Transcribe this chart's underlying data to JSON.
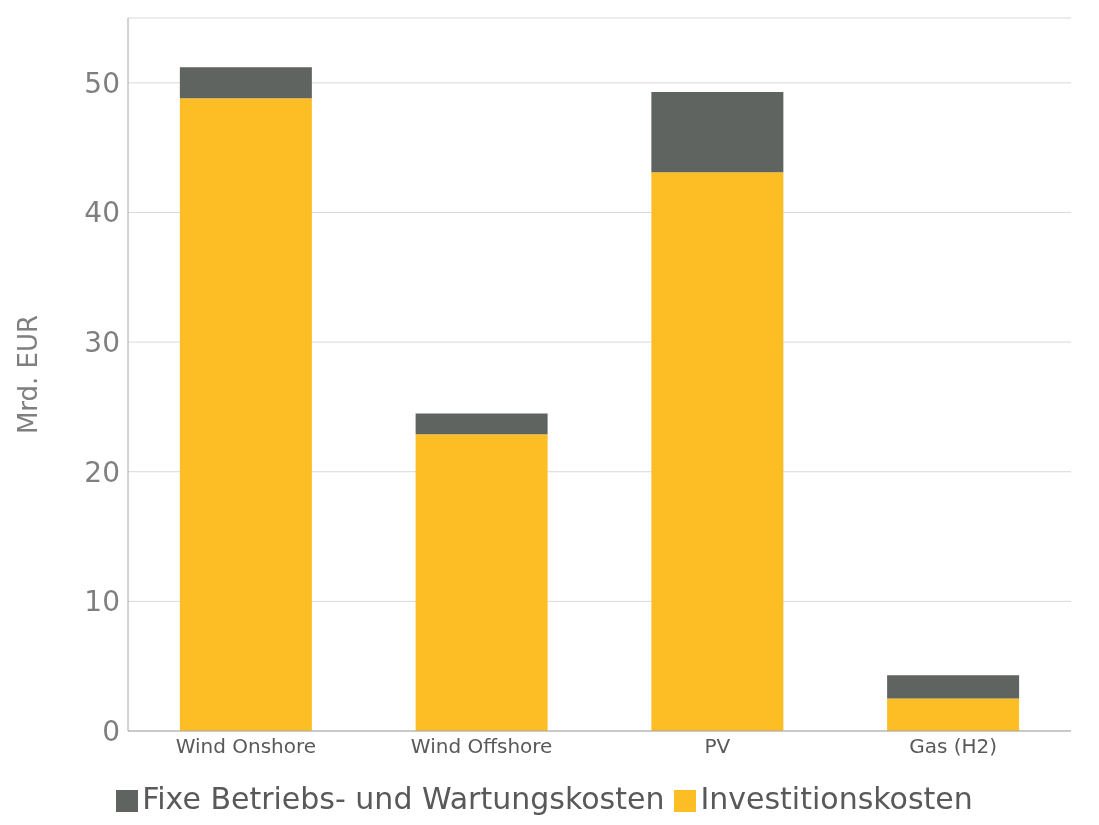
{
  "chart_data": {
    "type": "bar",
    "stacked": true,
    "ylabel": "Mrd. EUR",
    "categories": [
      "Wind Onshore",
      "Wind Offshore",
      "PV",
      "Gas (H2)"
    ],
    "series": [
      {
        "name": "Investitionskosten",
        "color": "#fdbd24",
        "values": [
          48.8,
          22.9,
          43.1,
          2.5
        ]
      },
      {
        "name": "Fixe Betriebs- und Wartungskosten",
        "color": "#5f6461",
        "values": [
          2.4,
          1.6,
          6.2,
          1.8
        ]
      }
    ],
    "ylim": [
      0,
      55
    ],
    "yticks": [
      0,
      10,
      20,
      30,
      40,
      50
    ],
    "grid": "y",
    "legend": "bottom"
  }
}
